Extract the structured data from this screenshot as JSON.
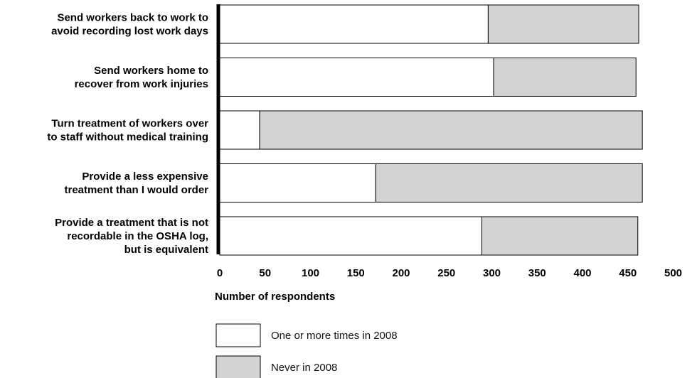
{
  "chart_data": {
    "type": "bar",
    "orientation": "horizontal",
    "stacked": true,
    "categories": [
      [
        "Send workers back to work to",
        "avoid recording lost work days"
      ],
      [
        "Send workers home to",
        "recover from work injuries"
      ],
      [
        "Turn treatment of workers over",
        "to staff without medical training"
      ],
      [
        "Provide a less expensive",
        "treatment than I would order"
      ],
      [
        "Provide a treatment that is not",
        "recordable in the OSHA log,",
        "but is equivalent"
      ]
    ],
    "series": [
      {
        "name": "One or more times in 2008",
        "values": [
          296,
          302,
          44,
          172,
          289
        ],
        "color": "#ffffff"
      },
      {
        "name": "Never in 2008",
        "values": [
          166,
          157,
          422,
          294,
          172
        ],
        "color": "#d3d3d3"
      }
    ],
    "xlabel": "Number of respondents",
    "ylabel": "",
    "xlim": [
      0,
      500
    ],
    "xticks": [
      "0",
      "50",
      "100",
      "150",
      "200",
      "250",
      "300",
      "350",
      "400",
      "450",
      "500"
    ],
    "grid": false,
    "legend_position": "bottom"
  }
}
